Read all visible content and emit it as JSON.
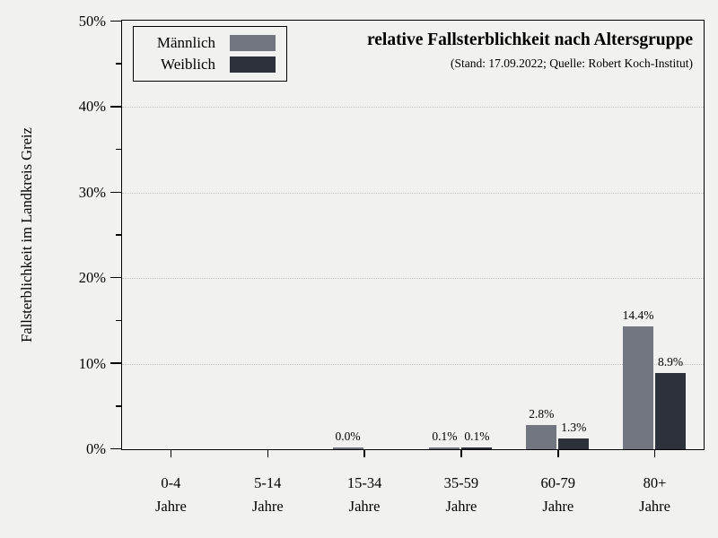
{
  "colors": {
    "background": "#f1f1ef",
    "axis": "#000000",
    "grid": "#c4c4c4"
  },
  "chart_data": {
    "type": "bar",
    "title": "relative Fallsterblichkeit nach Altersgruppe",
    "subtitle": "(Stand: 17.09.2022; Quelle: Robert Koch-Institut)",
    "ylabel": "Fallsterblichkeit im Landkreis Greiz",
    "xlabel": "",
    "ylim": [
      0,
      50
    ],
    "yticks": [
      0,
      10,
      20,
      30,
      40,
      50
    ],
    "ytick_labels": [
      "0%",
      "10%",
      "20%",
      "30%",
      "40%",
      "50%"
    ],
    "yticks_minor": [
      5,
      15,
      25,
      35,
      45
    ],
    "grid_lines_at": [
      10,
      20,
      30,
      40
    ],
    "grid_style": "dotted",
    "legend_position": "upper left",
    "categories": [
      "0-4",
      "5-14",
      "15-34",
      "35-59",
      "60-79",
      "80+"
    ],
    "category_suffix": "Jahre",
    "series": [
      {
        "name": "Männlich",
        "color": "#72777f",
        "values": [
          null,
          null,
          0.0,
          0.1,
          2.8,
          14.4
        ],
        "value_labels": [
          "",
          "",
          "0.0%",
          "0.1%",
          "2.8%",
          "14.4%"
        ]
      },
      {
        "name": "Weiblich",
        "color": "#2d323a",
        "values": [
          null,
          null,
          null,
          0.1,
          1.3,
          8.9
        ],
        "value_labels": [
          "",
          "",
          "",
          "0.1%",
          "1.3%",
          "8.9%"
        ]
      }
    ]
  }
}
